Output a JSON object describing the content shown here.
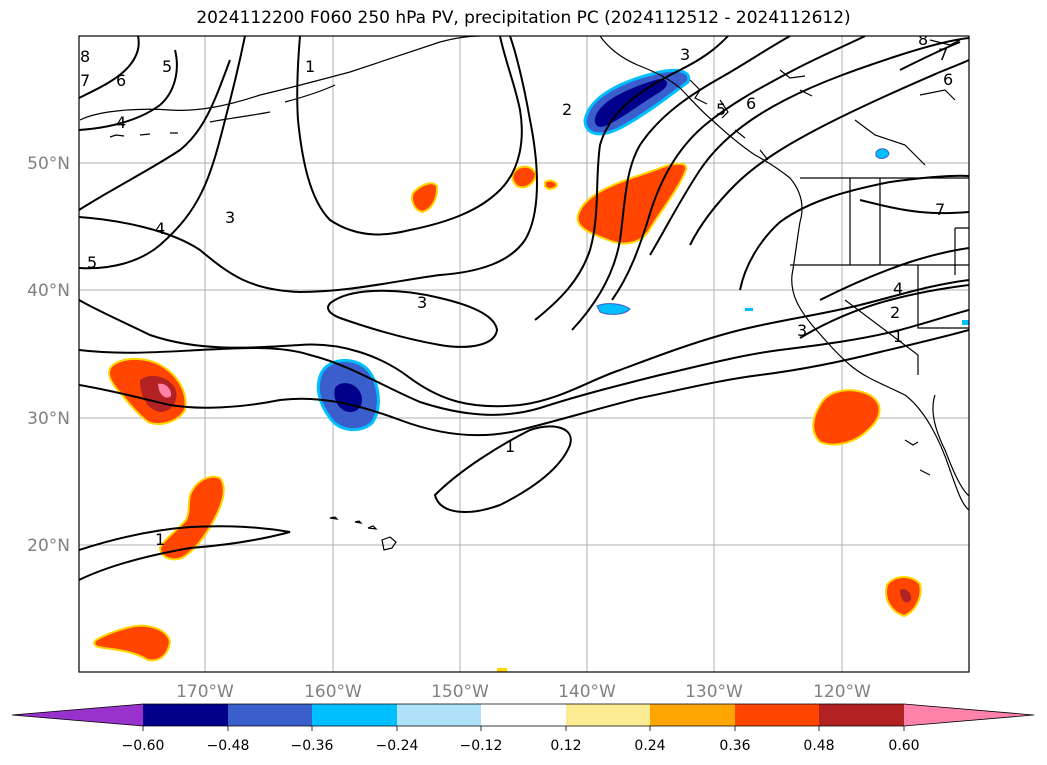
{
  "title": "2024112200 F060 250 hPa PV, precipitation PC (2024112512 - 2024112612)",
  "axes": {
    "lat_ticks": [
      {
        "label": "50°N",
        "value": 50
      },
      {
        "label": "40°N",
        "value": 40
      },
      {
        "label": "30°N",
        "value": 30
      },
      {
        "label": "20°N",
        "value": 20
      }
    ],
    "lon_ticks": [
      {
        "label": "170°W",
        "value": -170
      },
      {
        "label": "160°W",
        "value": -160
      },
      {
        "label": "150°W",
        "value": -150
      },
      {
        "label": "140°W",
        "value": -140
      },
      {
        "label": "130°W",
        "value": -130
      },
      {
        "label": "120°W",
        "value": -120
      }
    ],
    "tick_label_color": "#808080",
    "grid": true
  },
  "colorbar": {
    "tick_labels": [
      "−0.60",
      "−0.48",
      "−0.36",
      "−0.24",
      "−0.12",
      "0.12",
      "0.24",
      "0.36",
      "0.48",
      "0.60"
    ],
    "colors": [
      "#9932cc",
      "#00008b",
      "#3a5fcd",
      "#00bfff",
      "#afe1fb",
      "#ffffff",
      "#fdeb93",
      "#ffa500",
      "#ff4500",
      "#b22222",
      "#ff82ab"
    ],
    "extend": "both"
  },
  "contour_labels": [
    "1",
    "2",
    "3",
    "4",
    "5",
    "6",
    "7",
    "8"
  ],
  "colors": {
    "neg_dark": "#00008b",
    "neg_mid": "#3a5fcd",
    "neg_light": "#00bfff",
    "pos_edge": "#ffd700",
    "pos_main": "#ff4500",
    "pos_dark": "#b22222",
    "pos_peak": "#ff82ab"
  }
}
